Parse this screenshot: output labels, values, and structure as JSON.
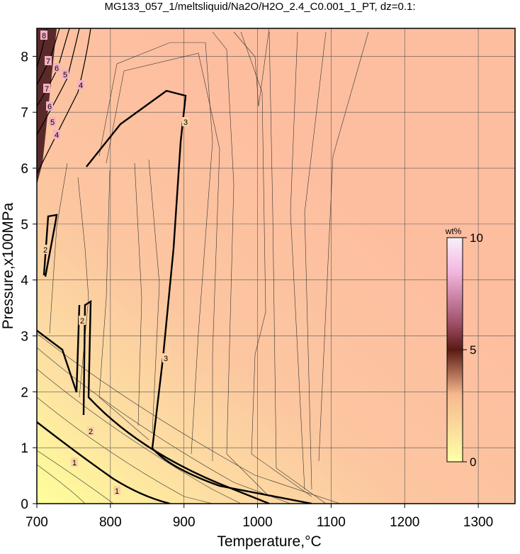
{
  "chart_data": {
    "type": "contour",
    "title": "MG133_057_1/meltsliquid/Na2O/H2O_2.4_C0.001_1_PT, dz=0.1:",
    "x_label": "Temperature,°C",
    "y_label": "Pressure,x100MPa",
    "xlim": [
      700,
      1350
    ],
    "xticks": [
      700,
      800,
      900,
      1000,
      1100,
      1200,
      1300
    ],
    "ylim": [
      0,
      8.5
    ],
    "yticks": [
      0,
      1,
      2,
      3,
      4,
      5,
      6,
      7,
      8
    ],
    "grid": true,
    "contour_levels": [
      1,
      2,
      3,
      4,
      5,
      6,
      7,
      8
    ],
    "colorbar": {
      "label": "wt%",
      "lim": [
        0,
        10
      ],
      "ticks": [
        0,
        5,
        10
      ]
    }
  }
}
